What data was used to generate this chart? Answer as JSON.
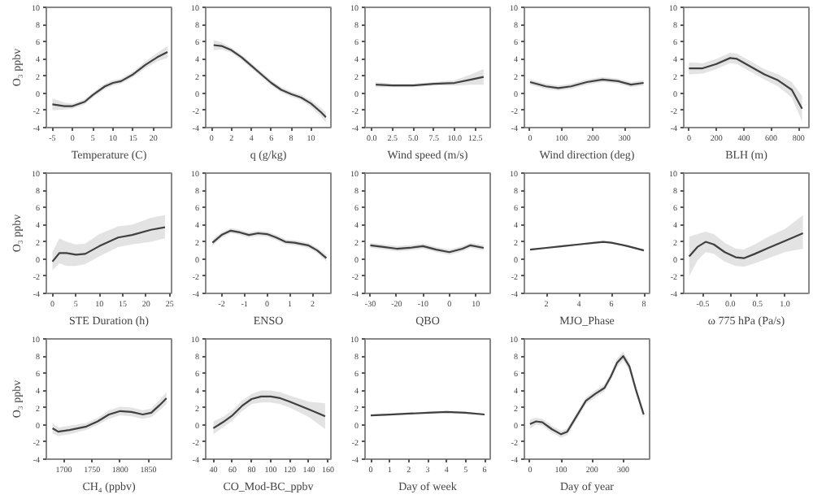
{
  "chart_data": [
    {
      "type": "line",
      "xlabel": "Temperature (C)",
      "ylabel": "O₃ ppbv",
      "xlim": [
        -6.5,
        24.5
      ],
      "xticks": [
        -5,
        0,
        5,
        10,
        15,
        20
      ],
      "ylim": [
        -4,
        10
      ],
      "yticks": [
        -4,
        -2,
        0,
        2,
        4,
        6,
        8,
        10
      ],
      "series": [
        {
          "color": "#404040",
          "x": [
            -5,
            -2,
            0,
            3,
            5,
            8,
            10,
            12,
            15,
            18,
            21,
            23.5
          ],
          "values": [
            -1.3,
            -1.5,
            -1.5,
            -1.0,
            -0.2,
            0.8,
            1.2,
            1.4,
            2.2,
            3.3,
            4.2,
            4.8
          ],
          "lower": [
            -2.0,
            -1.9,
            -1.8,
            -1.3,
            -0.5,
            0.5,
            0.9,
            1.1,
            1.9,
            2.9,
            3.7,
            4.1
          ],
          "upper": [
            -0.6,
            -1.1,
            -1.2,
            -0.7,
            0.1,
            1.1,
            1.5,
            1.7,
            2.5,
            3.7,
            4.7,
            5.5
          ]
        }
      ]
    },
    {
      "type": "line",
      "xlabel": "q (g/kg)",
      "xlim": [
        -0.6,
        12
      ],
      "xticks": [
        0,
        2,
        4,
        6,
        8,
        10
      ],
      "ylim": [
        -4,
        10
      ],
      "yticks": [
        -4,
        -2,
        0,
        2,
        4,
        6,
        8,
        10
      ],
      "series": [
        {
          "color": "#404040",
          "x": [
            0.2,
            1,
            2,
            3,
            4,
            5,
            6,
            7,
            8,
            9,
            10,
            11,
            11.5
          ],
          "values": [
            5.6,
            5.5,
            5.0,
            4.2,
            3.2,
            2.2,
            1.2,
            0.4,
            -0.1,
            -0.5,
            -1.2,
            -2.2,
            -2.8
          ],
          "lower": [
            5.0,
            5.1,
            4.7,
            3.9,
            2.9,
            1.9,
            0.9,
            0.1,
            -0.4,
            -0.8,
            -1.6,
            -2.7,
            -3.4
          ],
          "upper": [
            6.2,
            5.9,
            5.3,
            4.5,
            3.5,
            2.5,
            1.5,
            0.7,
            0.2,
            -0.2,
            -0.8,
            -1.7,
            -2.2
          ]
        }
      ]
    },
    {
      "type": "line",
      "xlabel": "Wind speed (m/s)",
      "xlim": [
        -0.8,
        14.3
      ],
      "xticks": [
        {
          "value": 0,
          "label": "0.0"
        },
        2.5,
        {
          "value": 5,
          "label": "5.0"
        },
        7.5,
        {
          "value": 10,
          "label": "10.0"
        },
        12.5
      ],
      "ylim": [
        -4,
        10
      ],
      "yticks": [
        -4,
        -2,
        0,
        2,
        4,
        6,
        8,
        10
      ],
      "series": [
        {
          "color": "#404040",
          "x": [
            0.5,
            2.5,
            5,
            7.5,
            10,
            12,
            13.5
          ],
          "values": [
            1.0,
            0.9,
            0.9,
            1.1,
            1.2,
            1.6,
            1.9
          ],
          "lower": [
            0.7,
            0.7,
            0.7,
            0.9,
            0.9,
            1.0,
            1.0
          ],
          "upper": [
            1.3,
            1.1,
            1.1,
            1.3,
            1.5,
            2.2,
            2.8
          ]
        }
      ]
    },
    {
      "type": "line",
      "xlabel": "Wind direction (deg)",
      "xlim": [
        -18,
        379
      ],
      "xticks": [
        0,
        100,
        200,
        300
      ],
      "ylim": [
        -4,
        10
      ],
      "yticks": [
        -4,
        -2,
        0,
        2,
        4,
        6,
        8,
        10
      ],
      "series": [
        {
          "color": "#404040",
          "x": [
            0,
            50,
            90,
            130,
            180,
            230,
            280,
            320,
            360
          ],
          "values": [
            1.3,
            0.8,
            0.6,
            0.8,
            1.3,
            1.6,
            1.4,
            1.0,
            1.2
          ],
          "lower": [
            1.0,
            0.5,
            0.3,
            0.5,
            1.0,
            1.3,
            1.1,
            0.7,
            0.9
          ],
          "upper": [
            1.6,
            1.1,
            0.9,
            1.1,
            1.6,
            1.9,
            1.7,
            1.3,
            1.5
          ]
        }
      ]
    },
    {
      "type": "line",
      "xlabel": "BLH (m)",
      "xlim": [
        -38,
        875
      ],
      "xticks": [
        0,
        200,
        400,
        600,
        800
      ],
      "ylim": [
        -4,
        10
      ],
      "yticks": [
        -4,
        -2,
        0,
        2,
        4,
        6,
        8,
        10
      ],
      "series": [
        {
          "color": "#404040",
          "x": [
            0,
            100,
            200,
            300,
            350,
            450,
            550,
            650,
            750,
            825
          ],
          "values": [
            2.9,
            2.9,
            3.4,
            4.1,
            4.0,
            3.1,
            2.2,
            1.5,
            0.4,
            -1.8
          ],
          "lower": [
            2.2,
            2.3,
            2.8,
            3.5,
            3.4,
            2.5,
            1.6,
            0.8,
            -0.5,
            -3.3
          ],
          "upper": [
            3.6,
            3.5,
            4.0,
            4.7,
            4.6,
            3.7,
            2.8,
            2.2,
            1.3,
            -0.3
          ]
        }
      ]
    },
    {
      "type": "line",
      "xlabel": "STE Duration (h)",
      "ylabel": "O₃ ppbv",
      "xlim": [
        -1.3,
        25.4
      ],
      "xticks": [
        0,
        5,
        10,
        15,
        20,
        25
      ],
      "ylim": [
        -4,
        10
      ],
      "yticks": [
        -4,
        -2,
        0,
        2,
        4,
        6,
        8,
        10
      ],
      "series": [
        {
          "color": "#404040",
          "x": [
            0,
            1.5,
            3,
            5,
            7,
            10,
            14,
            17,
            21,
            24
          ],
          "values": [
            -0.3,
            0.7,
            0.7,
            0.5,
            0.6,
            1.5,
            2.5,
            2.8,
            3.4,
            3.7
          ],
          "lower": [
            -1.3,
            -0.5,
            -0.8,
            -0.8,
            -0.6,
            0.3,
            1.4,
            1.7,
            2.0,
            2.4
          ],
          "upper": [
            0.8,
            2.4,
            2.0,
            1.7,
            1.8,
            2.9,
            3.8,
            4.0,
            4.8,
            5.1
          ]
        }
      ]
    },
    {
      "type": "line",
      "xlabel": "ENSO",
      "xlim": [
        -2.7,
        2.8
      ],
      "xticks": [
        -2,
        -1,
        0,
        1,
        2
      ],
      "ylim": [
        -4,
        10
      ],
      "yticks": [
        -4,
        -2,
        0,
        2,
        4,
        6,
        8,
        10
      ],
      "series": [
        {
          "color": "#404040",
          "x": [
            -2.4,
            -2,
            -1.6,
            -1.2,
            -0.8,
            -0.4,
            0,
            0.4,
            0.8,
            1.2,
            1.8,
            2.2,
            2.6
          ],
          "values": [
            1.9,
            2.8,
            3.3,
            3.1,
            2.8,
            3.0,
            2.9,
            2.5,
            2.0,
            1.9,
            1.6,
            1.0,
            0.1
          ],
          "lower": [
            1.5,
            2.5,
            3.0,
            2.8,
            2.5,
            2.7,
            2.6,
            2.2,
            1.7,
            1.6,
            1.3,
            0.7,
            -0.3
          ],
          "upper": [
            2.3,
            3.1,
            3.6,
            3.4,
            3.1,
            3.3,
            3.2,
            2.8,
            2.3,
            2.2,
            1.9,
            1.3,
            0.5
          ]
        }
      ]
    },
    {
      "type": "line",
      "xlabel": "QBO",
      "xlim": [
        -32,
        15.5
      ],
      "xticks": [
        -30,
        -20,
        -10,
        0,
        10
      ],
      "ylim": [
        -4,
        10
      ],
      "yticks": [
        -4,
        -2,
        0,
        2,
        4,
        6,
        8,
        10
      ],
      "series": [
        {
          "color": "#404040",
          "x": [
            -30,
            -25,
            -20,
            -15,
            -10,
            -5,
            0,
            5,
            8,
            13
          ],
          "values": [
            1.6,
            1.4,
            1.2,
            1.3,
            1.5,
            1.1,
            0.8,
            1.2,
            1.6,
            1.3
          ],
          "lower": [
            1.3,
            1.1,
            0.9,
            1.0,
            1.2,
            0.8,
            0.5,
            0.9,
            1.3,
            1.0
          ],
          "upper": [
            1.9,
            1.7,
            1.5,
            1.6,
            1.8,
            1.4,
            1.1,
            1.5,
            1.9,
            1.6
          ]
        }
      ]
    },
    {
      "type": "line",
      "xlabel": "MJO_Phase",
      "xlim": [
        0.65,
        8.35
      ],
      "xticks": [
        2,
        4,
        6,
        8
      ],
      "ylim": [
        -4,
        10
      ],
      "yticks": [
        -4,
        -2,
        0,
        2,
        4,
        6,
        8,
        10
      ],
      "series": [
        {
          "color": "#404040",
          "x": [
            1,
            2,
            3,
            4,
            5,
            5.5,
            6,
            7,
            8
          ],
          "values": [
            1.1,
            1.3,
            1.5,
            1.7,
            1.9,
            2.0,
            1.9,
            1.5,
            1.0
          ],
          "lower": [
            1.0,
            1.2,
            1.4,
            1.6,
            1.8,
            1.9,
            1.8,
            1.4,
            0.9
          ],
          "upper": [
            1.2,
            1.4,
            1.6,
            1.8,
            2.0,
            2.1,
            2.0,
            1.6,
            1.1
          ]
        }
      ]
    },
    {
      "type": "line",
      "xlabel": "ω 775 hPa (Pa/s)",
      "xlim": [
        -0.85,
        1.44
      ],
      "xticks": [
        -0.5,
        {
          "value": 0,
          "label": "0.0"
        },
        0.5,
        {
          "value": 1,
          "label": "1.0"
        }
      ],
      "ylim": [
        -4,
        10
      ],
      "yticks": [
        -4,
        -2,
        0,
        2,
        4,
        6,
        8,
        10
      ],
      "series": [
        {
          "color": "#404040",
          "x": [
            -0.75,
            -0.6,
            -0.45,
            -0.3,
            -0.1,
            0.1,
            0.25,
            0.45,
            0.7,
            1.0,
            1.33
          ],
          "values": [
            0.3,
            1.4,
            2.0,
            1.7,
            0.8,
            0.2,
            0.1,
            0.6,
            1.3,
            2.1,
            3.0
          ],
          "lower": [
            -2.0,
            -0.2,
            0.8,
            0.6,
            -0.3,
            -0.8,
            -0.9,
            -0.5,
            0.1,
            0.8,
            1.2
          ],
          "upper": [
            2.6,
            2.9,
            3.2,
            2.9,
            1.9,
            1.2,
            1.1,
            1.7,
            2.6,
            3.5,
            5.1
          ]
        }
      ]
    },
    {
      "type": "line",
      "xlabel": "CH₄ (ppbv)",
      "ylabel": "O₃ ppbv",
      "xlim": [
        1669,
        1891
      ],
      "xticks": [
        1700,
        1750,
        1800,
        1850
      ],
      "ylim": [
        -4,
        10
      ],
      "yticks": [
        -4,
        -2,
        0,
        2,
        4,
        6,
        8,
        10
      ],
      "series": [
        {
          "color": "#404040",
          "x": [
            1680,
            1690,
            1710,
            1740,
            1760,
            1780,
            1800,
            1820,
            1840,
            1855,
            1870,
            1882
          ],
          "values": [
            -0.4,
            -0.8,
            -0.6,
            -0.2,
            0.4,
            1.2,
            1.6,
            1.5,
            1.2,
            1.4,
            2.3,
            3.1
          ],
          "lower": [
            -1.0,
            -1.3,
            -1.1,
            -0.6,
            0.0,
            0.7,
            1.1,
            1.0,
            0.7,
            0.9,
            1.7,
            2.4
          ],
          "upper": [
            0.2,
            -0.3,
            -0.1,
            0.2,
            0.8,
            1.7,
            2.1,
            2.0,
            1.7,
            1.9,
            2.9,
            3.8
          ]
        }
      ]
    },
    {
      "type": "line",
      "xlabel": "CO_Mod-BC_ppbv",
      "xlim": [
        32,
        163
      ],
      "xticks": [
        40,
        60,
        80,
        100,
        120,
        140,
        160
      ],
      "ylim": [
        -4,
        10
      ],
      "yticks": [
        -4,
        -2,
        0,
        2,
        4,
        6,
        8,
        10
      ],
      "series": [
        {
          "color": "#404040",
          "x": [
            40,
            50,
            60,
            70,
            80,
            90,
            100,
            110,
            120,
            140,
            157
          ],
          "values": [
            -0.4,
            0.3,
            1.1,
            2.2,
            3.0,
            3.3,
            3.3,
            3.1,
            2.7,
            1.8,
            1.0
          ],
          "lower": [
            -1.1,
            -0.3,
            0.5,
            1.6,
            2.4,
            2.6,
            2.6,
            2.4,
            2.0,
            0.9,
            -0.5
          ],
          "upper": [
            0.4,
            0.9,
            1.7,
            2.8,
            3.6,
            4.0,
            4.0,
            3.8,
            3.4,
            2.7,
            2.5
          ]
        }
      ]
    },
    {
      "type": "line",
      "xlabel": "Day of week",
      "xlim": [
        -0.3,
        6.3
      ],
      "xticks": [
        0,
        1,
        2,
        3,
        4,
        5,
        6
      ],
      "ylim": [
        -4,
        10
      ],
      "yticks": [
        -4,
        -2,
        0,
        2,
        4,
        6,
        8,
        10
      ],
      "series": [
        {
          "color": "#404040",
          "x": [
            0,
            1,
            2,
            3,
            4,
            5,
            6
          ],
          "values": [
            1.1,
            1.2,
            1.3,
            1.4,
            1.5,
            1.4,
            1.2
          ],
          "lower": [
            1.0,
            1.1,
            1.2,
            1.3,
            1.4,
            1.3,
            1.1
          ],
          "upper": [
            1.2,
            1.3,
            1.4,
            1.5,
            1.6,
            1.5,
            1.3
          ]
        }
      ]
    },
    {
      "type": "line",
      "xlabel": "Day of year",
      "xlim": [
        -18,
        385
      ],
      "xticks": [
        0,
        100,
        200,
        300
      ],
      "ylim": [
        -4,
        10
      ],
      "yticks": [
        -4,
        -2,
        0,
        2,
        4,
        6,
        8,
        10
      ],
      "series": [
        {
          "color": "#404040",
          "x": [
            0,
            20,
            40,
            70,
            100,
            120,
            150,
            180,
            210,
            240,
            260,
            280,
            300,
            320,
            340,
            366
          ],
          "values": [
            0.1,
            0.4,
            0.3,
            -0.5,
            -1.1,
            -0.8,
            1.0,
            2.8,
            3.6,
            4.3,
            5.6,
            7.2,
            8.0,
            6.8,
            4.2,
            1.2
          ],
          "lower": [
            -0.4,
            0.0,
            -0.1,
            -0.9,
            -1.5,
            -1.2,
            0.6,
            2.4,
            3.2,
            3.9,
            5.2,
            6.7,
            7.5,
            6.3,
            3.8,
            0.8
          ],
          "upper": [
            0.6,
            0.8,
            0.7,
            -0.1,
            -0.7,
            -0.4,
            1.4,
            3.2,
            4.0,
            4.7,
            6.0,
            7.7,
            8.5,
            7.3,
            4.6,
            1.6
          ]
        }
      ]
    }
  ]
}
